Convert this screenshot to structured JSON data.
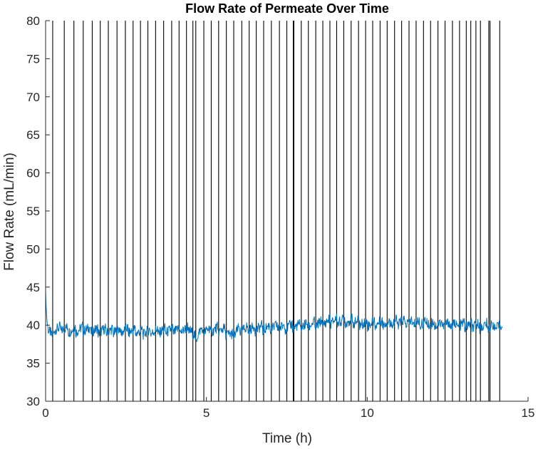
{
  "chart_data": {
    "type": "line",
    "title": "Flow Rate of Permeate Over Time",
    "xlabel": "Time (h)",
    "ylabel": "Flow Rate (mL/min)",
    "xlim": [
      0,
      15
    ],
    "ylim": [
      30,
      80
    ],
    "xticks": [
      0,
      5,
      10,
      15
    ],
    "yticks": [
      30,
      35,
      40,
      45,
      50,
      55,
      60,
      65,
      70,
      75,
      80
    ],
    "grid": false,
    "legend": "none",
    "series": [
      {
        "color": "#0072BD",
        "x": [
          0,
          0.02,
          0.05,
          0.1,
          0.15,
          0.2,
          0.25,
          0.3,
          0.4,
          0.5,
          0.6,
          0.8,
          1.0,
          1.2,
          1.5,
          2.0,
          2.5,
          3.0,
          3.5,
          4.0,
          4.5,
          4.65,
          4.8,
          5.0,
          5.5,
          5.8,
          6.0,
          6.5,
          7.0,
          7.5,
          8.0,
          8.5,
          9.0,
          9.5,
          10.0,
          10.5,
          11.0,
          11.5,
          12.0,
          12.5,
          13.0,
          13.5,
          14.0,
          14.2
        ],
        "values": [
          44.5,
          42.0,
          40.2,
          39.2,
          39.0,
          38.2,
          39.2,
          39.6,
          39.4,
          39.6,
          39.5,
          39.3,
          39.4,
          39.5,
          39.3,
          39.2,
          39.3,
          39.1,
          39.2,
          39.3,
          39.4,
          38.2,
          39.2,
          39.3,
          39.4,
          38.5,
          39.4,
          39.6,
          39.7,
          39.8,
          39.9,
          40.2,
          40.6,
          40.5,
          40.2,
          40.3,
          40.4,
          40.3,
          40.2,
          40.1,
          40.0,
          39.9,
          39.8,
          39.7
        ]
      }
    ],
    "vertical_lines_x": [
      0.22,
      0.58,
      0.88,
      1.17,
      1.45,
      1.7,
      1.95,
      2.22,
      2.48,
      2.72,
      2.95,
      3.18,
      3.42,
      3.67,
      3.92,
      4.15,
      4.38,
      4.58,
      4.67,
      4.92,
      5.15,
      5.38,
      5.62,
      5.85,
      6.1,
      6.33,
      6.55,
      6.78,
      7.02,
      7.27,
      7.5,
      7.7,
      7.72,
      7.95,
      8.17,
      8.4,
      8.62,
      8.84,
      9.05,
      9.27,
      9.5,
      9.73,
      9.95,
      10.17,
      10.4,
      10.62,
      10.85,
      11.07,
      11.3,
      11.52,
      11.75,
      11.97,
      12.2,
      12.42,
      12.65,
      12.87,
      13.08,
      13.22,
      13.38,
      13.52,
      13.78,
      13.82,
      14.12
    ],
    "vertical_line_color": "#000000"
  }
}
